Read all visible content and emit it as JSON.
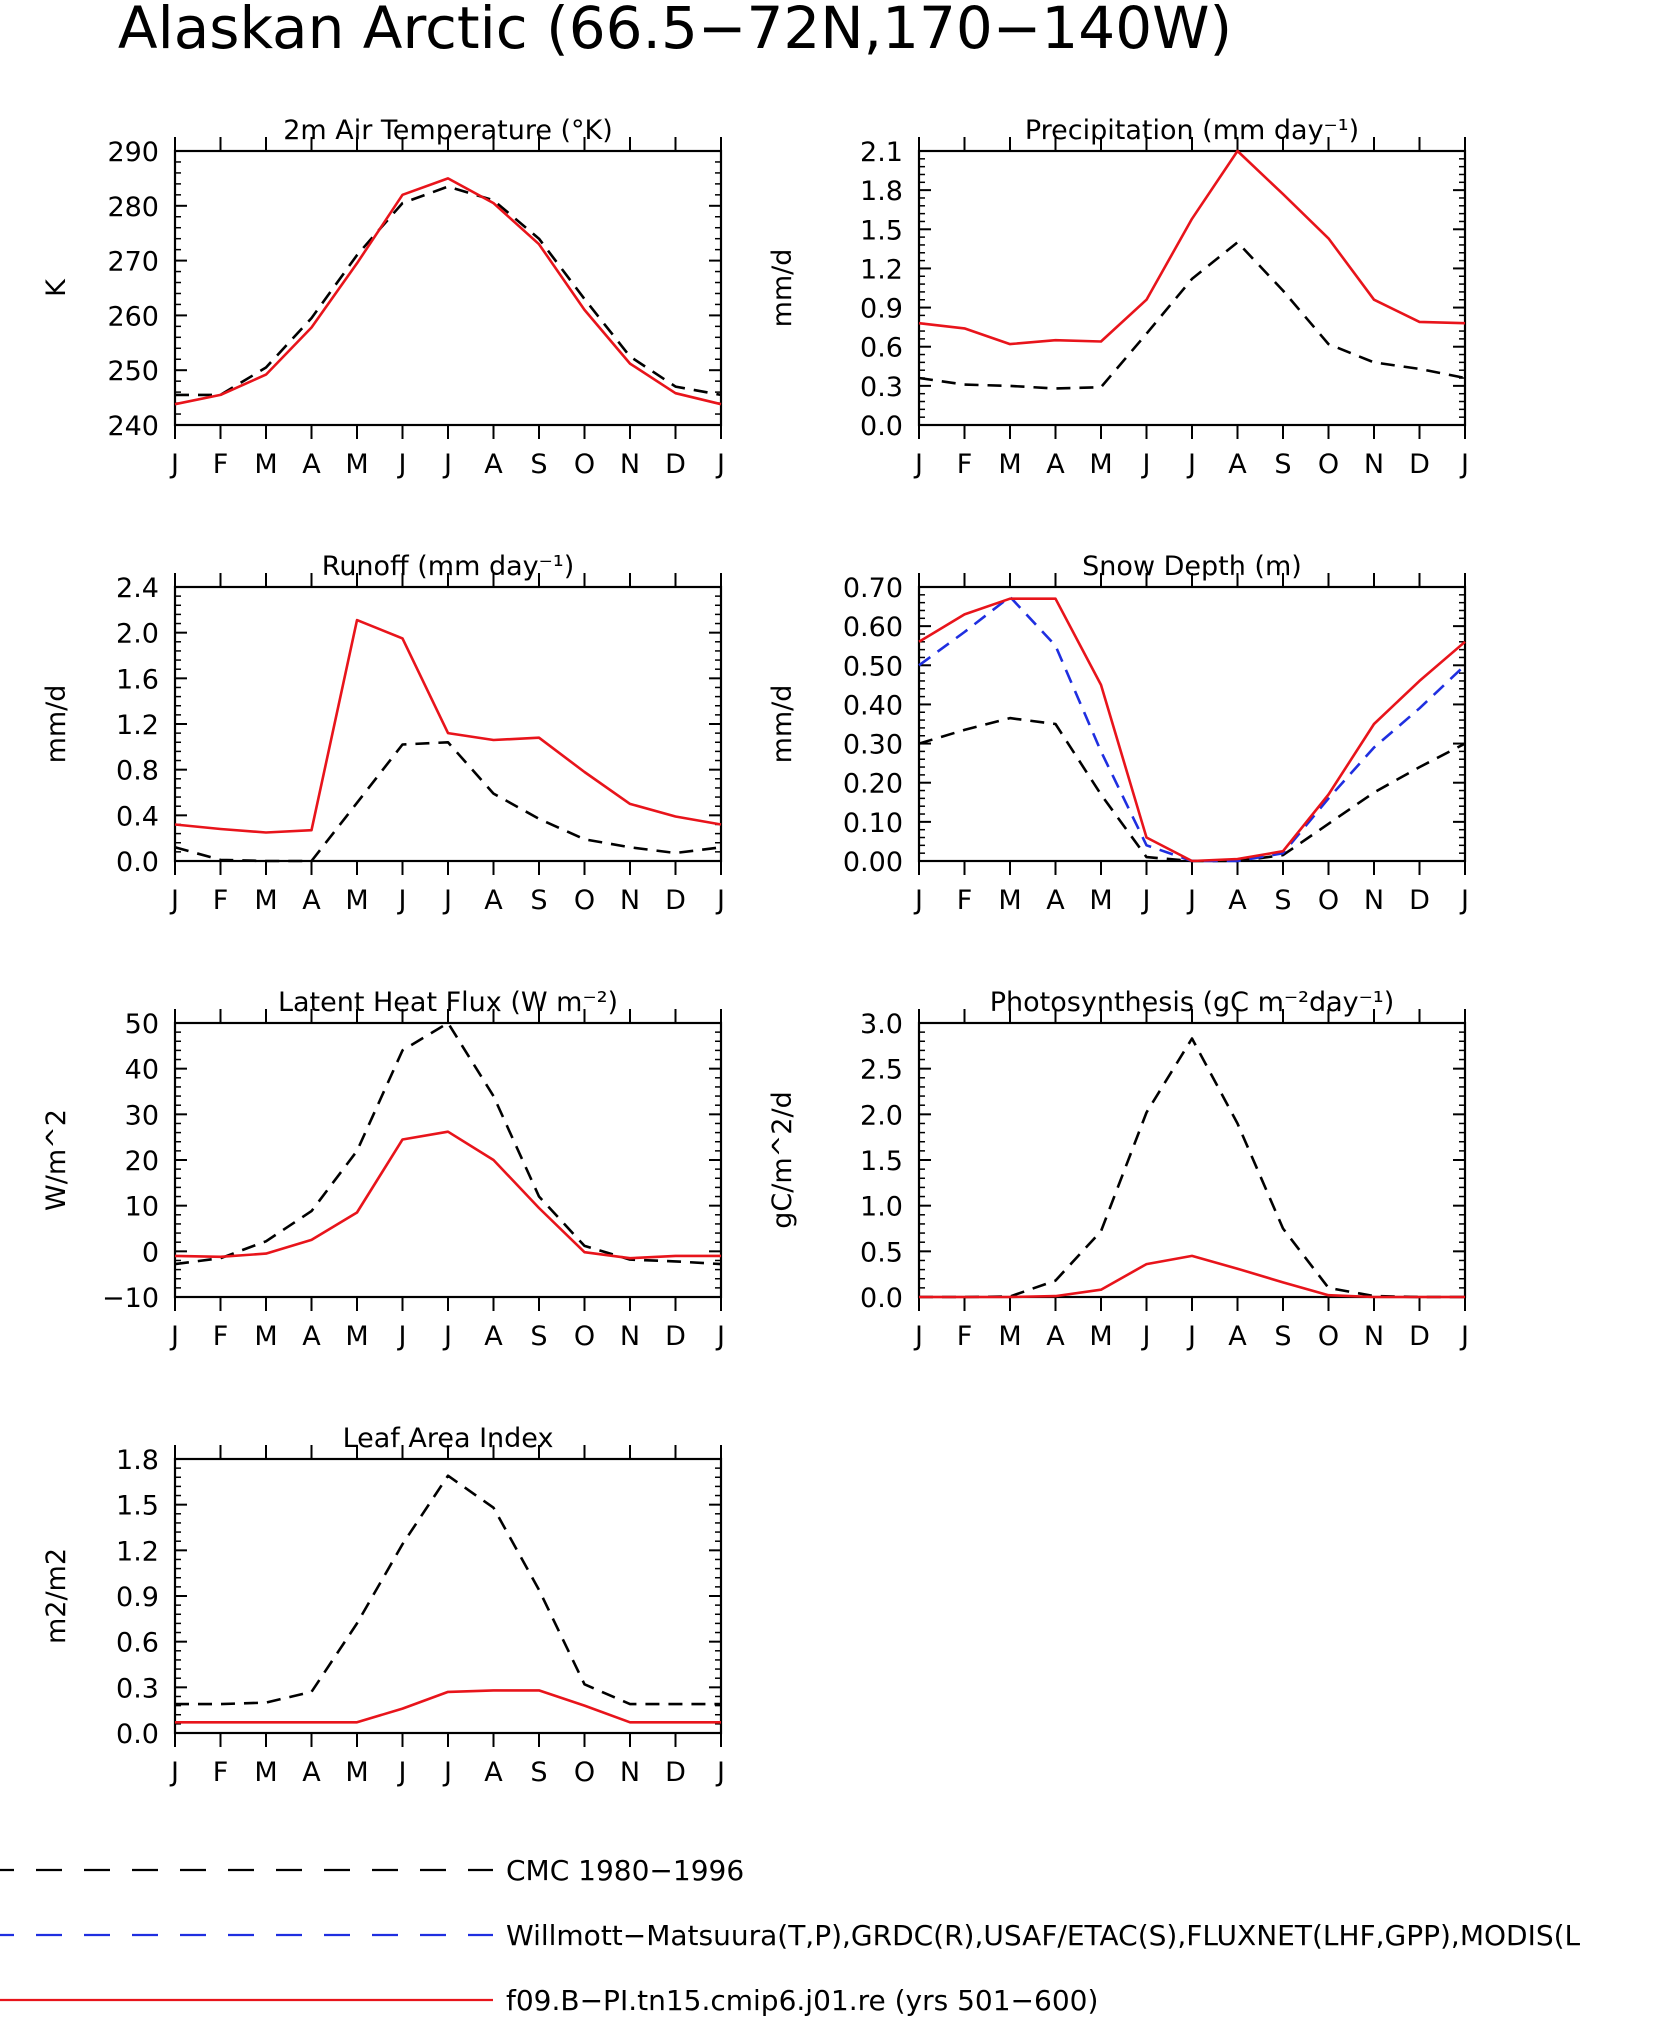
{
  "title": "Alaskan Arctic (66.5−72N,170−140W)",
  "colors": {
    "cmc": "#000000",
    "obs": "#1f2fe0",
    "model": "#e8141b"
  },
  "months": [
    "J",
    "F",
    "M",
    "A",
    "M",
    "J",
    "J",
    "A",
    "S",
    "O",
    "N",
    "D",
    "J"
  ],
  "legend": [
    {
      "label": "CMC 1980−1996",
      "color": "#000000",
      "style": "dashed"
    },
    {
      "label": "Willmott−Matsuura(T,P),GRDC(R),USAF/ETAC(S),FLUXNET(LHF,GPP),MODIS(L",
      "color": "#1f2fe0",
      "style": "dashed"
    },
    {
      "label": "f09.B−PI.tn15.cmip6.j01.re (yrs 501−600)",
      "color": "#e8141b",
      "style": "solid"
    }
  ],
  "chart_data": [
    {
      "type": "line",
      "title": "2m Air Temperature (°K)",
      "ylabel": "K",
      "ylim": [
        240,
        290
      ],
      "yticks": [
        "240",
        "250",
        "260",
        "270",
        "280",
        "290"
      ],
      "x": [
        "J",
        "F",
        "M",
        "A",
        "M",
        "J",
        "J",
        "A",
        "S",
        "O",
        "N",
        "D",
        "J"
      ],
      "series": [
        {
          "key": "cmc",
          "values": [
            245.5,
            245.5,
            250.5,
            259.5,
            271,
            280.5,
            283.5,
            281,
            274,
            263,
            252.5,
            247,
            245.5
          ]
        },
        {
          "key": "model",
          "values": [
            243.8,
            245.5,
            249.2,
            257.8,
            269.5,
            282,
            285,
            280.5,
            273,
            261,
            251.2,
            245.8,
            243.8
          ]
        }
      ]
    },
    {
      "type": "line",
      "title": "Precipitation (mm day⁻¹)",
      "ylabel": "mm/d",
      "ylim": [
        0,
        2.1
      ],
      "yticks": [
        "0.0",
        "0.3",
        "0.6",
        "0.9",
        "1.2",
        "1.5",
        "1.8",
        "2.1"
      ],
      "x": [
        "J",
        "F",
        "M",
        "A",
        "M",
        "J",
        "J",
        "A",
        "S",
        "O",
        "N",
        "D",
        "J"
      ],
      "series": [
        {
          "key": "cmc",
          "values": [
            0.36,
            0.31,
            0.3,
            0.28,
            0.29,
            0.7,
            1.12,
            1.4,
            1.03,
            0.62,
            0.48,
            0.43,
            0.36
          ]
        },
        {
          "key": "model",
          "values": [
            0.78,
            0.74,
            0.62,
            0.65,
            0.64,
            0.96,
            1.58,
            2.1,
            1.77,
            1.43,
            0.96,
            0.79,
            0.78
          ]
        }
      ]
    },
    {
      "type": "line",
      "title": "Runoff (mm day⁻¹)",
      "ylabel": "mm/d",
      "ylim": [
        0,
        2.4
      ],
      "yticks": [
        "0.0",
        "0.4",
        "0.8",
        "1.2",
        "1.6",
        "2.0",
        "2.4"
      ],
      "x": [
        "J",
        "F",
        "M",
        "A",
        "M",
        "J",
        "J",
        "A",
        "S",
        "O",
        "N",
        "D",
        "J"
      ],
      "series": [
        {
          "key": "cmc",
          "values": [
            0.12,
            0.01,
            0.0,
            0.0,
            0.51,
            1.02,
            1.04,
            0.59,
            0.37,
            0.19,
            0.12,
            0.07,
            0.12
          ]
        },
        {
          "key": "model",
          "values": [
            0.32,
            0.28,
            0.25,
            0.27,
            2.11,
            1.95,
            1.12,
            1.06,
            1.08,
            0.78,
            0.5,
            0.39,
            0.32
          ]
        }
      ]
    },
    {
      "type": "line",
      "title": "Snow Depth (m)",
      "ylabel": "mm/d",
      "ylim": [
        0,
        0.7
      ],
      "yticks": [
        "0.00",
        "0.10",
        "0.20",
        "0.30",
        "0.40",
        "0.50",
        "0.60",
        "0.70"
      ],
      "x": [
        "J",
        "F",
        "M",
        "A",
        "M",
        "J",
        "J",
        "A",
        "S",
        "O",
        "N",
        "D",
        "J"
      ],
      "series": [
        {
          "key": "cmc",
          "values": [
            0.3,
            0.335,
            0.365,
            0.35,
            0.17,
            0.01,
            0.0,
            0.0,
            0.015,
            0.095,
            0.175,
            0.24,
            0.3
          ]
        },
        {
          "key": "obs",
          "values": [
            0.5,
            0.585,
            0.675,
            0.55,
            0.28,
            0.04,
            0.0,
            0.0,
            0.02,
            0.16,
            0.29,
            0.39,
            0.5
          ]
        },
        {
          "key": "model",
          "values": [
            0.56,
            0.63,
            0.67,
            0.67,
            0.45,
            0.06,
            0.0,
            0.005,
            0.025,
            0.17,
            0.35,
            0.46,
            0.56
          ]
        }
      ]
    },
    {
      "type": "line",
      "title": "Latent Heat Flux (W m⁻²)",
      "ylabel": "W/m^2",
      "ylim": [
        -10,
        50
      ],
      "yticks": [
        "−10",
        "0",
        "10",
        "20",
        "30",
        "40",
        "50"
      ],
      "x": [
        "J",
        "F",
        "M",
        "A",
        "M",
        "J",
        "J",
        "A",
        "S",
        "O",
        "N",
        "D",
        "J"
      ],
      "series": [
        {
          "key": "cmc",
          "values": [
            -2.8,
            -1.5,
            2.2,
            8.8,
            22,
            44,
            50,
            34,
            12,
            1.2,
            -1.8,
            -2.2,
            -2.8
          ]
        },
        {
          "key": "model",
          "values": [
            -1.0,
            -1.2,
            -0.5,
            2.5,
            8.5,
            24.5,
            26.2,
            20,
            9.5,
            -0.2,
            -1.5,
            -1.0,
            -1.0
          ]
        }
      ]
    },
    {
      "type": "line",
      "title": "Photosynthesis (gC m⁻²day⁻¹)",
      "ylabel": "gC/m^2/d",
      "ylim": [
        0,
        3.0
      ],
      "yticks": [
        "0.0",
        "0.5",
        "1.0",
        "1.5",
        "2.0",
        "2.5",
        "3.0"
      ],
      "x": [
        "J",
        "F",
        "M",
        "A",
        "M",
        "J",
        "J",
        "A",
        "S",
        "O",
        "N",
        "D",
        "J"
      ],
      "series": [
        {
          "key": "cmc",
          "values": [
            0.0,
            0.0,
            0.005,
            0.18,
            0.72,
            2.02,
            2.83,
            1.9,
            0.75,
            0.1,
            0.01,
            0.0,
            0.0
          ]
        },
        {
          "key": "model",
          "values": [
            0.0,
            0.0,
            0.0,
            0.01,
            0.08,
            0.36,
            0.45,
            0.31,
            0.16,
            0.02,
            0.0,
            0.0,
            0.0
          ]
        }
      ]
    },
    {
      "type": "line",
      "title": "Leaf Area Index",
      "ylabel": "m2/m2",
      "ylim": [
        0,
        1.8
      ],
      "yticks": [
        "0.0",
        "0.3",
        "0.6",
        "0.9",
        "1.2",
        "1.5",
        "1.8"
      ],
      "x": [
        "J",
        "F",
        "M",
        "A",
        "M",
        "J",
        "J",
        "A",
        "S",
        "O",
        "N",
        "D",
        "J"
      ],
      "series": [
        {
          "key": "cmc",
          "values": [
            0.19,
            0.19,
            0.2,
            0.27,
            0.72,
            1.24,
            1.69,
            1.48,
            0.94,
            0.32,
            0.19,
            0.19,
            0.19
          ]
        },
        {
          "key": "model",
          "values": [
            0.07,
            0.07,
            0.07,
            0.07,
            0.07,
            0.16,
            0.27,
            0.28,
            0.28,
            0.18,
            0.07,
            0.07,
            0.07
          ]
        }
      ]
    }
  ]
}
